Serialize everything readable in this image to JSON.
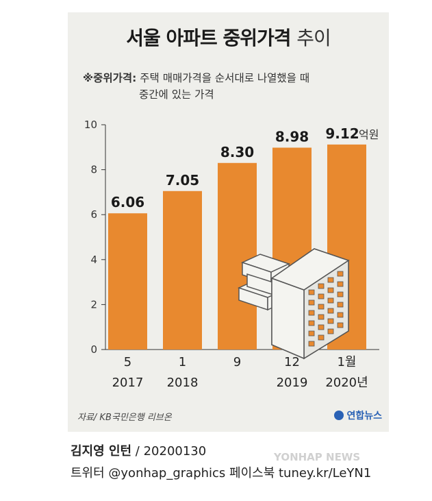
{
  "title": {
    "bold": "서울 아파트 중위가격",
    "light": "추이"
  },
  "note": {
    "marker": "※중위가격:",
    "line1": "주택 매매가격을 순서대로 나열했을 때",
    "line2": "중간에 있는 가격"
  },
  "unit": "억원",
  "source": "자료/ KB국민은행 리브온",
  "logo": "연합뉴스",
  "credit": {
    "name": "김지영 인턴",
    "date": " / 20200130"
  },
  "social": "트위터 @yonhap_graphics  페이스북 tuney.kr/LeYN1",
  "watermark": "YONHAP NEWS",
  "colors": {
    "bar": "#e8892f",
    "background": "#efefeb",
    "axis": "#333333"
  },
  "chart_data": {
    "type": "bar",
    "categories": [
      "5\n2017",
      "1\n2018",
      "9",
      "12\n2019",
      "1월\n2020년"
    ],
    "category_lines": [
      [
        "5",
        "2017"
      ],
      [
        "1",
        "2018"
      ],
      [
        "9",
        ""
      ],
      [
        "12",
        "2019"
      ],
      [
        "1월",
        "2020년"
      ]
    ],
    "values": [
      6.06,
      7.05,
      8.3,
      8.98,
      9.12
    ],
    "value_labels": [
      "6.06",
      "7.05",
      "8.30",
      "8.98",
      "9.12"
    ],
    "ylim": [
      0,
      10
    ],
    "yticks": [
      0,
      2,
      4,
      6,
      8,
      10
    ],
    "xlabel": "",
    "ylabel": "",
    "grid": false
  }
}
